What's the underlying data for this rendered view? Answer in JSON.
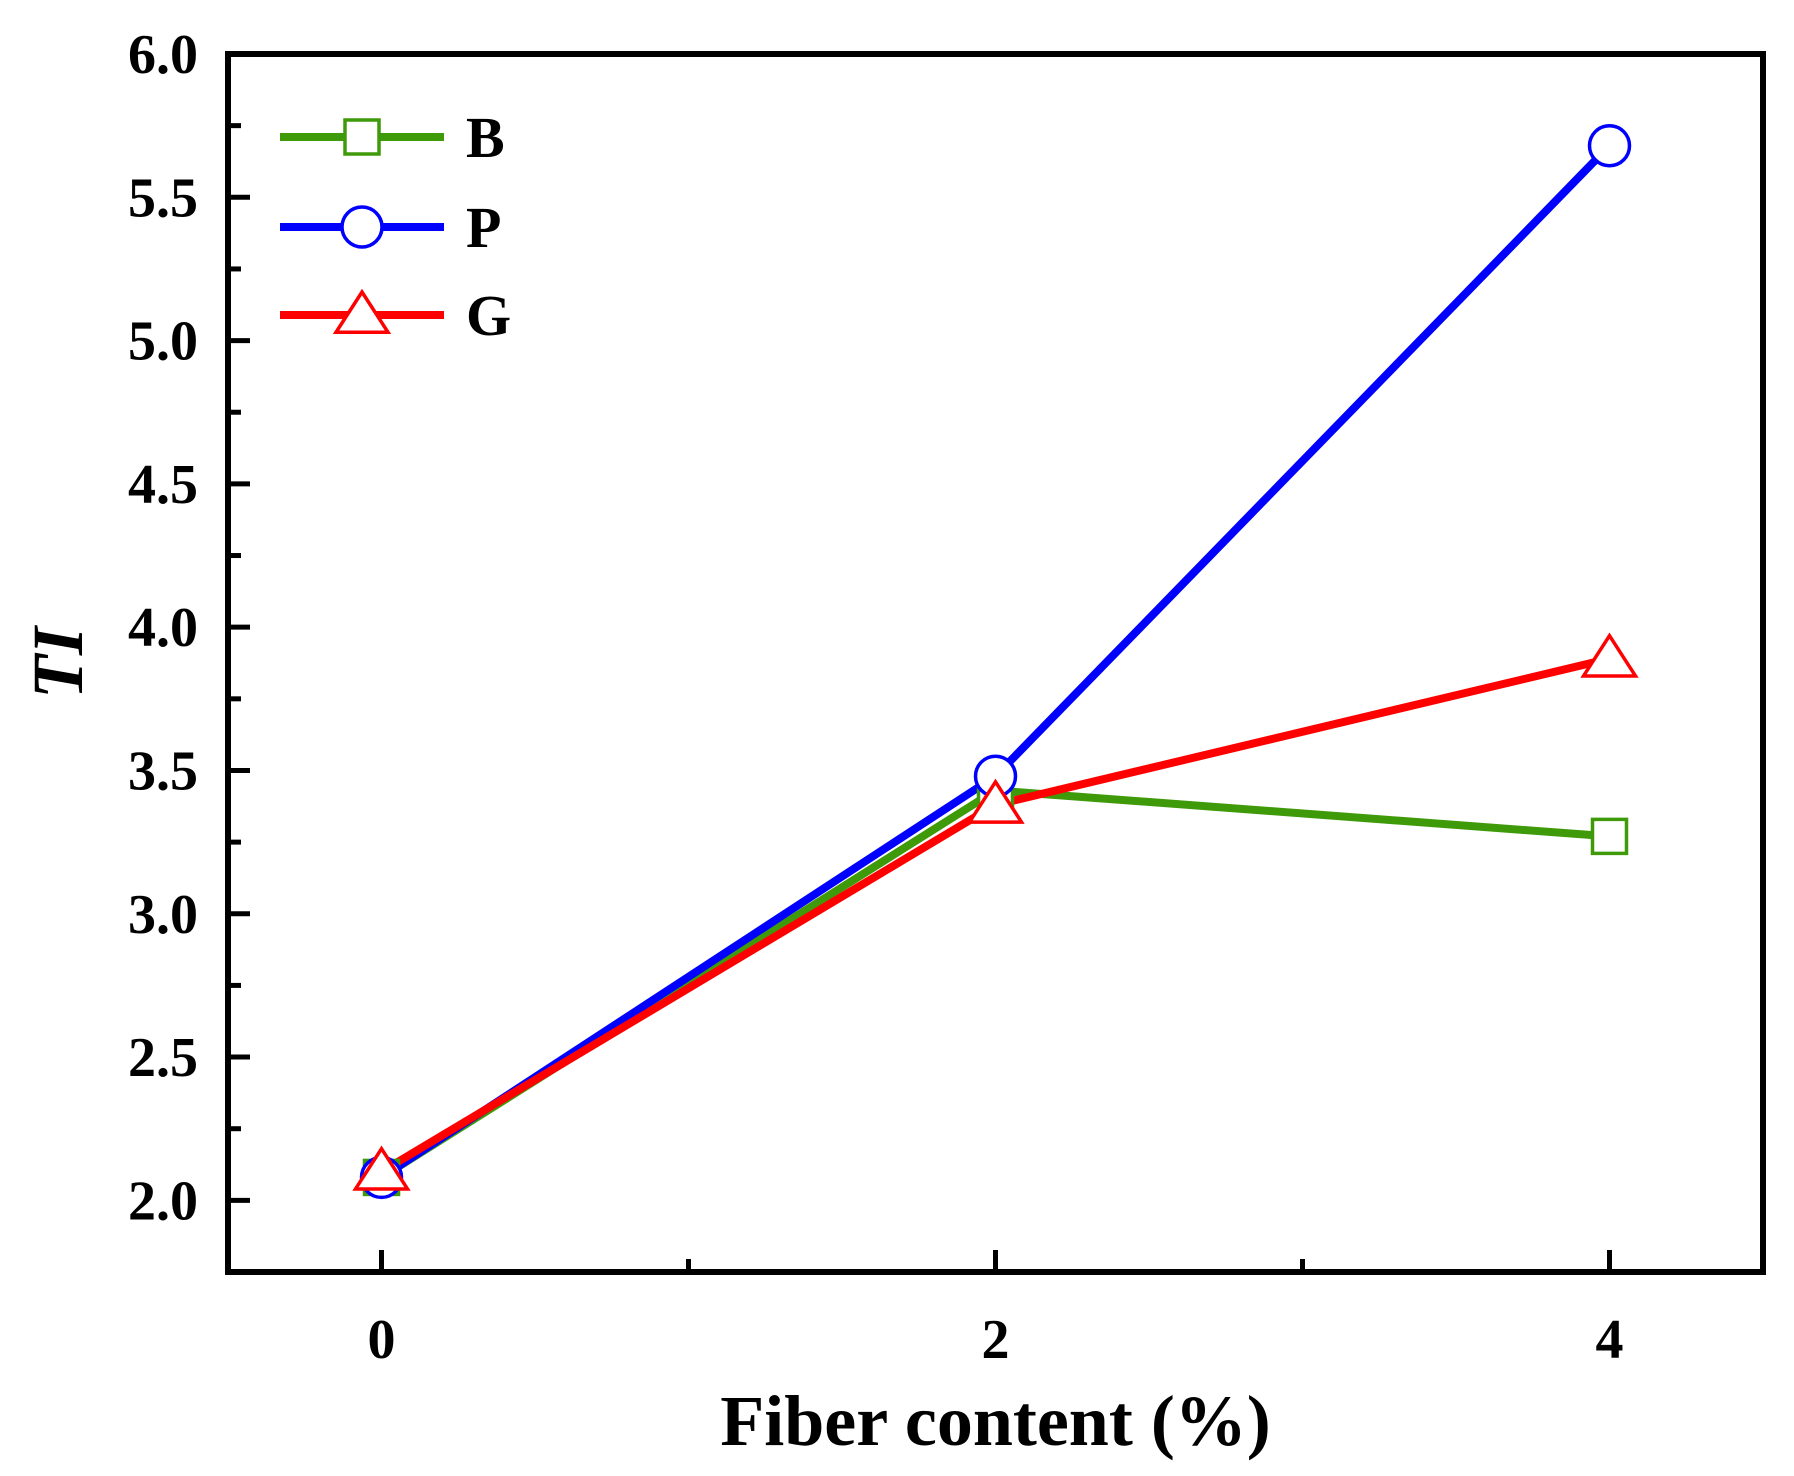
{
  "chart_data": {
    "type": "line",
    "xlabel": "Fiber content (%)",
    "ylabel": "TI",
    "x": [
      0,
      2,
      4
    ],
    "x_ticks": [
      "0",
      "2",
      "4"
    ],
    "y_ticks": [
      "2.0",
      "2.5",
      "3.0",
      "3.5",
      "4.0",
      "4.5",
      "5.0",
      "5.5",
      "6.0"
    ],
    "xlim": [
      -0.5,
      4.5
    ],
    "ylim": [
      1.75,
      6.0
    ],
    "grid": false,
    "legend_position": "top-left",
    "series": [
      {
        "name": "B",
        "values": [
          2.08,
          3.43,
          3.27
        ],
        "color": "#3f9a0a",
        "marker": "square"
      },
      {
        "name": "P",
        "values": [
          2.08,
          3.48,
          5.68
        ],
        "color": "#0000ff",
        "marker": "circle"
      },
      {
        "name": "G",
        "values": [
          2.1,
          3.38,
          3.89
        ],
        "color": "#ff0000",
        "marker": "triangle"
      }
    ]
  }
}
